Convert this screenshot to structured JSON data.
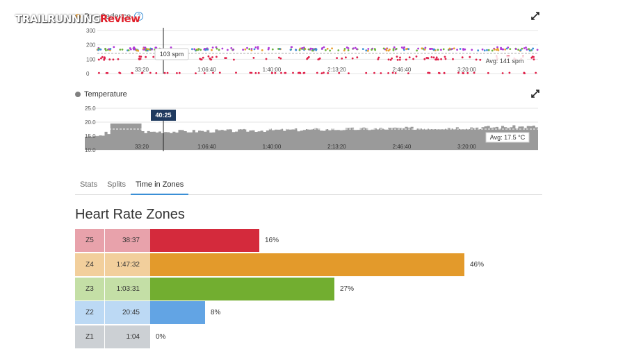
{
  "logo": {
    "part1": "TRAILRUNNING",
    "part2": "Review"
  },
  "cadence": {
    "title": "Run Cadence",
    "help_icon": "help-icon",
    "dot_color": "#f0a030",
    "y_ticks": [
      "300",
      "200",
      "100",
      "0"
    ],
    "x_ticks": [
      "33:20",
      "1:06:40",
      "1:40:00",
      "2:13:20",
      "2:46:40",
      "3:20:00"
    ],
    "tooltip": "103 spm",
    "avg_label": "Avg: 141 spm",
    "colors": {
      "purple": "#b03ad6",
      "green": "#6db33f",
      "blue": "#3a8fd6",
      "orange": "#e8a030",
      "red": "#e0214a"
    }
  },
  "temperature": {
    "title": "Temperature",
    "dot_color": "#808080",
    "y_ticks": [
      "25.0",
      "20.0",
      "15.0",
      "10.0"
    ],
    "x_ticks": [
      "33:20",
      "1:06:40",
      "1:40:00",
      "2:13:20",
      "2:46:40",
      "3:20:00"
    ],
    "cursor_label": "40:25",
    "avg_label": "Avg: 17.5 °C",
    "fill_color": "#9a9a9a"
  },
  "tabs": [
    {
      "label": "Stats",
      "active": false
    },
    {
      "label": "Splits",
      "active": false
    },
    {
      "label": "Time in Zones",
      "active": true
    }
  ],
  "zones": {
    "title": "Heart Rate Zones",
    "rows": [
      {
        "zone": "Z5",
        "time": "38:37",
        "pct_label": "16%",
        "fraction": 0.16,
        "color": "#d42a3c",
        "label_bg": "#e8a2ab"
      },
      {
        "zone": "Z4",
        "time": "1:47:32",
        "pct_label": "46%",
        "fraction": 0.46,
        "color": "#e39a2b",
        "label_bg": "#f2cf9c"
      },
      {
        "zone": "Z3",
        "time": "1:03:31",
        "pct_label": "27%",
        "fraction": 0.27,
        "color": "#72ae30",
        "label_bg": "#c4dfa6"
      },
      {
        "zone": "Z2",
        "time": "20:45",
        "pct_label": "8%",
        "fraction": 0.08,
        "color": "#62a4e4",
        "label_bg": "#bcd9f4"
      },
      {
        "zone": "Z1",
        "time": "1:04",
        "pct_label": "0%",
        "fraction": 0.0,
        "color": "#b9bec3",
        "label_bg": "#ccd0d4"
      }
    ]
  }
}
